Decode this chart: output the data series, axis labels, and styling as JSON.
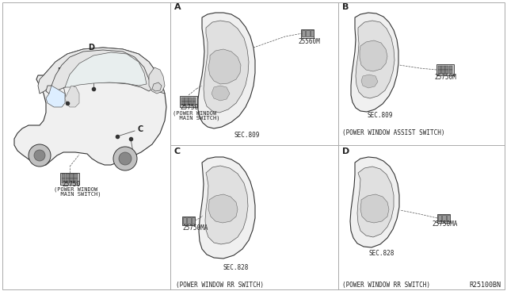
{
  "bg_color": "#ffffff",
  "border_color": "#333333",
  "text_color": "#222222",
  "title_bottom": "R25100BN",
  "panel_labels": [
    "A",
    "B",
    "C",
    "D"
  ],
  "part_25560M": "25560M",
  "part_25750": "25750",
  "part_25750_line1": "25750",
  "part_25750_line2": "(POWER WINDOW",
  "part_25750_line3": "  MAIN SWITCH)",
  "part_sec809": "SEC.809",
  "part_25750M": "25750M",
  "part_assist": "(POWER WINDOW ASSIST SWITCH)",
  "part_25750MA": "25750MA",
  "part_sec828": "SEC.828",
  "part_rr": "(POWER WINDOW RR SWITCH)",
  "fig_width": 6.4,
  "fig_height": 3.72,
  "dpi": 100
}
